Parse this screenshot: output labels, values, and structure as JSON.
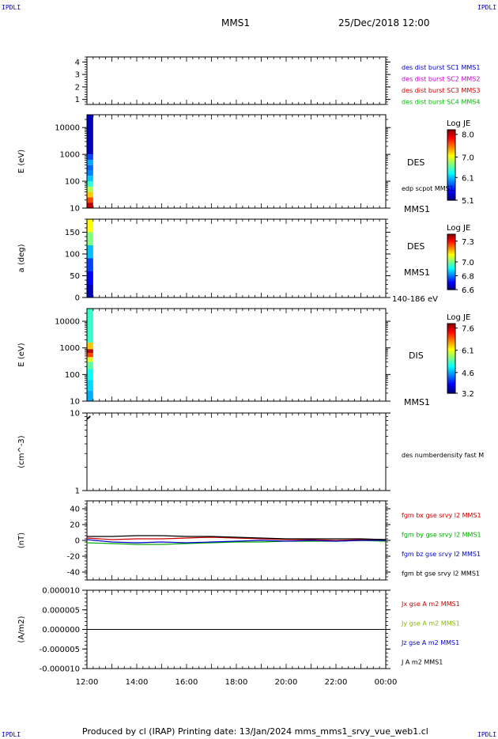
{
  "corners": {
    "tl": "IPDLI",
    "tr": "IPDLI",
    "bl": "IPDLI",
    "br": "IPDLI"
  },
  "header": {
    "spacecraft": "MMS1",
    "datetime": "25/Dec/2018 12:00"
  },
  "footer": {
    "text": "Produced by cl (IRAP)   Printing date: 13/Jan/2024   mms_mms1_srvy_vue_web1.cl"
  },
  "chart_data": [
    {
      "type": "line",
      "panel": "burst-flags",
      "ylim": [
        0.6,
        4.4
      ],
      "yticks": [
        "1",
        "2",
        "3",
        "4"
      ],
      "legend": [
        {
          "name": "des dist burst SC1 MMS1",
          "color": "#0000cc"
        },
        {
          "name": "des dist burst SC2 MMS2",
          "color": "#cc00cc"
        },
        {
          "name": "des dist burst SC3 MMS3",
          "color": "#cc0000"
        },
        {
          "name": "des dist burst SC4 MMS4",
          "color": "#00bb00"
        }
      ],
      "series": []
    },
    {
      "type": "heatmap",
      "panel": "des-energy-spectrogram",
      "ylabel": "E (eV)",
      "yscale": "log",
      "ylim": [
        10,
        30000
      ],
      "yticks": [
        "10",
        "100",
        "1000",
        "10000"
      ],
      "labels": [
        "DES",
        "edp scpot MMS1",
        "MMS1"
      ],
      "colorbar": {
        "title": "Log JE",
        "ticks": [
          "8.0",
          "7.0",
          "6.1",
          "5.1"
        ],
        "range": [
          5.1,
          8.2
        ]
      },
      "x_coverage": [
        "12:00",
        "12:15"
      ],
      "energy_bins": [
        {
          "e": [
            10,
            16
          ],
          "v": 8.0
        },
        {
          "e": [
            16,
            25
          ],
          "v": 7.6
        },
        {
          "e": [
            25,
            40
          ],
          "v": 7.2
        },
        {
          "e": [
            40,
            63
          ],
          "v": 6.8
        },
        {
          "e": [
            63,
            100
          ],
          "v": 6.4
        },
        {
          "e": [
            100,
            160
          ],
          "v": 6.1
        },
        {
          "e": [
            160,
            250
          ],
          "v": 5.9
        },
        {
          "e": [
            250,
            400
          ],
          "v": 5.8
        },
        {
          "e": [
            400,
            630
          ],
          "v": 6.0
        },
        {
          "e": [
            630,
            1000
          ],
          "v": 5.7
        },
        {
          "e": [
            1000,
            30000
          ],
          "v": 5.3
        }
      ]
    },
    {
      "type": "heatmap",
      "panel": "des-pitch-angle",
      "ylabel": "a (deg)",
      "ylim": [
        0,
        180
      ],
      "yticks": [
        "0",
        "50",
        "100",
        "150"
      ],
      "labels": [
        "DES",
        "MMS1",
        "140-186 eV"
      ],
      "colorbar": {
        "title": "Log JE",
        "ticks": [
          "7.3",
          "7.0",
          "6.8",
          "6.6"
        ],
        "range": [
          6.6,
          7.4
        ]
      },
      "x_coverage": [
        "12:00",
        "12:15"
      ],
      "angle_bins": [
        {
          "a": [
            150,
            180
          ],
          "v": 7.1
        },
        {
          "a": [
            120,
            150
          ],
          "v": 7.0
        },
        {
          "a": [
            90,
            120
          ],
          "v": 6.85
        },
        {
          "a": [
            60,
            90
          ],
          "v": 6.75
        },
        {
          "a": [
            30,
            60
          ],
          "v": 6.7
        },
        {
          "a": [
            0,
            30
          ],
          "v": 6.65
        }
      ]
    },
    {
      "type": "heatmap",
      "panel": "dis-energy-spectrogram",
      "ylabel": "E (eV)",
      "yscale": "log",
      "ylim": [
        10,
        30000
      ],
      "yticks": [
        "10",
        "100",
        "1000",
        "10000"
      ],
      "labels": [
        "DIS",
        "MMS1"
      ],
      "colorbar": {
        "title": "Log JE",
        "ticks": [
          "7.6",
          "6.1",
          "4.6",
          "3.2"
        ],
        "range": [
          3.2,
          7.9
        ]
      },
      "x_coverage": [
        "12:00",
        "12:15"
      ],
      "energy_bins": [
        {
          "e": [
            10,
            25
          ],
          "v": 4.6
        },
        {
          "e": [
            25,
            63
          ],
          "v": 4.8
        },
        {
          "e": [
            63,
            160
          ],
          "v": 5.0
        },
        {
          "e": [
            160,
            300
          ],
          "v": 5.4
        },
        {
          "e": [
            300,
            450
          ],
          "v": 6.0
        },
        {
          "e": [
            450,
            650
          ],
          "v": 7.0
        },
        {
          "e": [
            650,
            900
          ],
          "v": 7.6
        },
        {
          "e": [
            900,
            1600
          ],
          "v": 6.4
        },
        {
          "e": [
            1600,
            30000
          ],
          "v": 5.2
        }
      ]
    },
    {
      "type": "scatter",
      "panel": "density",
      "ylabel": "(cm^-3)",
      "yscale": "log",
      "ylim": [
        1,
        10
      ],
      "yticks": [
        "1",
        "10"
      ],
      "legend": [
        {
          "name": "des numberdensity fast M",
          "color": "#000000"
        }
      ],
      "series": [
        {
          "color": "#000000",
          "x": [
            "12:01",
            "12:03",
            "12:05",
            "12:07"
          ],
          "y": [
            8.4,
            8.6,
            8.8,
            9.0
          ]
        }
      ]
    },
    {
      "type": "line",
      "panel": "magnetic-field",
      "ylabel": "(nT)",
      "ylim": [
        -50,
        50
      ],
      "yticks": [
        "-40",
        "-20",
        "0",
        "20",
        "40"
      ],
      "legend": [
        {
          "name": "fgm bx gse srvy l2 MMS1",
          "color": "#cc0000"
        },
        {
          "name": "fgm by gse srvy l2 MMS1",
          "color": "#00aa00"
        },
        {
          "name": "fgm bz gse srvy l2 MMS1",
          "color": "#0000cc"
        },
        {
          "name": "fgm bt gse srvy l2 MMS1",
          "color": "#000000"
        }
      ],
      "series": [
        {
          "color": "#cc0000",
          "x": [
            12,
            13,
            14,
            15,
            16,
            17,
            18,
            19,
            20,
            21,
            22,
            23,
            24
          ],
          "y": [
            3,
            1,
            2,
            2,
            3,
            4,
            3,
            2,
            1,
            1,
            0,
            1,
            1
          ]
        },
        {
          "color": "#00aa00",
          "x": [
            12,
            13,
            14,
            15,
            16,
            17,
            18,
            19,
            20,
            21,
            22,
            23,
            24
          ],
          "y": [
            -3,
            -4,
            -5,
            -5,
            -4,
            -3,
            -2,
            -2,
            -1,
            -1,
            -1,
            0,
            -1
          ]
        },
        {
          "color": "#0000cc",
          "x": [
            12,
            13,
            14,
            15,
            16,
            17,
            18,
            19,
            20,
            21,
            22,
            23,
            24
          ],
          "y": [
            1,
            -2,
            -3,
            -2,
            -3,
            -2,
            -1,
            0,
            -1,
            0,
            -1,
            0,
            0
          ]
        },
        {
          "color": "#000000",
          "x": [
            12,
            13,
            14,
            15,
            16,
            17,
            18,
            19,
            20,
            21,
            22,
            23,
            24
          ],
          "y": [
            5,
            5,
            6,
            6,
            5,
            5,
            4,
            3,
            2,
            2,
            2,
            2,
            1
          ]
        }
      ]
    },
    {
      "type": "line",
      "panel": "current-density",
      "ylabel": "(A/m2)",
      "ylim": [
        -1e-05,
        1e-05
      ],
      "yticks": [
        "-0.000010",
        "-0.000005",
        "0.000000",
        "0.000005",
        "0.000010"
      ],
      "legend": [
        {
          "name": "Jx gse A m2 MMS1",
          "color": "#cc0000"
        },
        {
          "name": "Jy gse A m2 MMS1",
          "color": "#88bb00"
        },
        {
          "name": "Jz gse A m2 MMS1",
          "color": "#0000cc"
        },
        {
          "name": "J A m2 MMS1",
          "color": "#000000"
        }
      ],
      "series": [
        {
          "color": "#000000",
          "x": [
            12,
            14,
            16,
            18,
            20,
            22,
            24
          ],
          "y": [
            0,
            0,
            0,
            0,
            0,
            0,
            0
          ]
        }
      ]
    }
  ],
  "x_axis": {
    "ticks": [
      "12:00",
      "14:00",
      "16:00",
      "18:00",
      "20:00",
      "22:00",
      "00:00"
    ],
    "range_hours": [
      12,
      24
    ]
  }
}
